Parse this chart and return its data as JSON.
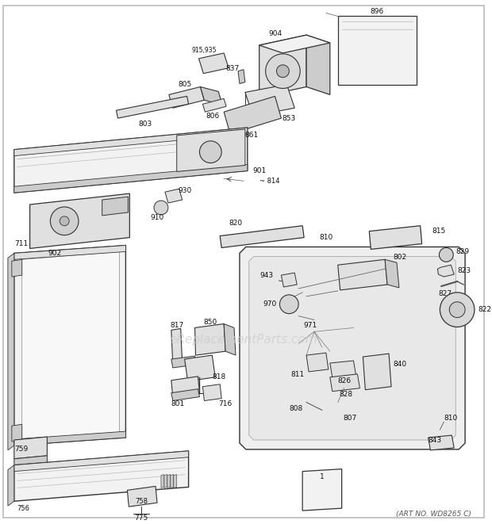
{
  "bg_color": "#ffffff",
  "border_color": "#bbbbbb",
  "line_color": "#333333",
  "fill_light": "#f2f2f2",
  "fill_mid": "#e0e0e0",
  "fill_dark": "#cccccc",
  "watermark": "eReplacementParts.com",
  "watermark_color": "#cccccc",
  "footer": "(ART NO. WD8265 C)",
  "font_color": "#111111",
  "font_size": 6.5
}
